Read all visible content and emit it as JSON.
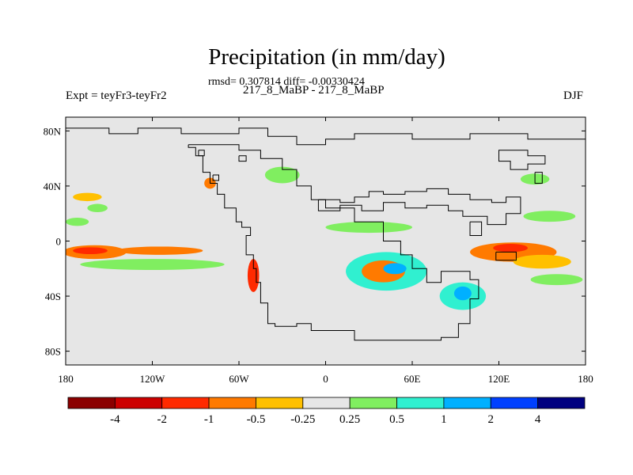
{
  "chart_data": {
    "type": "heatmap",
    "title": "Precipitation (in mm/day)",
    "stats_line": "rmsd= 0.307814 diff= -0.00330424",
    "runs_line": "217_8_MaBP - 217_8_MaBP",
    "left_label": "Expt = teyFr3-teyFr2",
    "right_label": "DJF",
    "xlabel": "",
    "ylabel": "",
    "xlim": [
      -180,
      180
    ],
    "ylim": [
      -90,
      90
    ],
    "x_ticks": [
      {
        "value": -180,
        "label": "180"
      },
      {
        "value": -120,
        "label": "120W"
      },
      {
        "value": -60,
        "label": "60W"
      },
      {
        "value": 0,
        "label": "0"
      },
      {
        "value": 60,
        "label": "60E"
      },
      {
        "value": 120,
        "label": "120E"
      },
      {
        "value": 180,
        "label": "180"
      }
    ],
    "y_ticks": [
      {
        "value": 80,
        "label": "80N"
      },
      {
        "value": 40,
        "label": "40N"
      },
      {
        "value": 0,
        "label": "0"
      },
      {
        "value": -40,
        "label": "40S"
      },
      {
        "value": -80,
        "label": "80S"
      }
    ],
    "colorbar": {
      "levels": [
        "-4",
        "-2",
        "-1",
        "-0.5",
        "-0.25",
        "0.25",
        "0.5",
        "1",
        "2",
        "4"
      ],
      "colors": [
        "#8b0000",
        "#cc0000",
        "#ff2a00",
        "#ff7a00",
        "#ffc000",
        "#e6e6e6",
        "#80ee60",
        "#30f0d0",
        "#00b0ff",
        "#0040ff",
        "#000080"
      ]
    },
    "background_color": "#e6e6e6",
    "features": [
      {
        "name": "equatorial-pacific-west-negative",
        "center": [
          -160,
          -8
        ],
        "extent": [
          22,
          5
        ],
        "bin": 3
      },
      {
        "name": "equatorial-pacific-west-core",
        "center": [
          -163,
          -7
        ],
        "extent": [
          12,
          2.5
        ],
        "bin": 2
      },
      {
        "name": "equatorial-pacific-central-negative",
        "center": [
          -115,
          -7
        ],
        "extent": [
          30,
          3
        ],
        "bin": 3
      },
      {
        "name": "south-pacific-positive-band",
        "center": [
          -120,
          -17
        ],
        "extent": [
          50,
          4
        ],
        "bin": 6
      },
      {
        "name": "north-pacific-orange-patch",
        "center": [
          -165,
          32
        ],
        "extent": [
          10,
          3
        ],
        "bin": 4
      },
      {
        "name": "north-pacific-green-patch",
        "center": [
          -172,
          14
        ],
        "extent": [
          8,
          3
        ],
        "bin": 6
      },
      {
        "name": "north-pacific-green-patch-2",
        "center": [
          -158,
          24
        ],
        "extent": [
          7,
          3
        ],
        "bin": 6
      },
      {
        "name": "andes-negative",
        "center": [
          -50,
          -25
        ],
        "extent": [
          4,
          12
        ],
        "bin": 2
      },
      {
        "name": "central-america-negative",
        "center": [
          -80,
          42
        ],
        "extent": [
          4,
          4
        ],
        "bin": 3
      },
      {
        "name": "atlantic-north-positive",
        "center": [
          -30,
          48
        ],
        "extent": [
          12,
          6
        ],
        "bin": 6
      },
      {
        "name": "north-africa-positive",
        "center": [
          30,
          10
        ],
        "extent": [
          30,
          4
        ],
        "bin": 6
      },
      {
        "name": "south-africa-mixed",
        "center": [
          42,
          -22
        ],
        "extent": [
          28,
          14
        ],
        "bin": 7
      },
      {
        "name": "south-africa-negative",
        "center": [
          40,
          -22
        ],
        "extent": [
          15,
          8
        ],
        "bin": 3
      },
      {
        "name": "south-africa-cyan",
        "center": [
          48,
          -20
        ],
        "extent": [
          8,
          4
        ],
        "bin": 8
      },
      {
        "name": "madagascar-region-mixed",
        "center": [
          95,
          -40
        ],
        "extent": [
          16,
          10
        ],
        "bin": 7
      },
      {
        "name": "indian-ocean-cyan",
        "center": [
          95,
          -38
        ],
        "extent": [
          6,
          5
        ],
        "bin": 8
      },
      {
        "name": "equatorial-indian-negative",
        "center": [
          130,
          -8
        ],
        "extent": [
          30,
          7
        ],
        "bin": 3
      },
      {
        "name": "equatorial-indian-core",
        "center": [
          128,
          -5
        ],
        "extent": [
          12,
          3
        ],
        "bin": 2
      },
      {
        "name": "equatorial-indian-south",
        "center": [
          150,
          -15
        ],
        "extent": [
          20,
          5
        ],
        "bin": 4
      },
      {
        "name": "pacific-east-green",
        "center": [
          155,
          18
        ],
        "extent": [
          18,
          4
        ],
        "bin": 6
      },
      {
        "name": "east-asia-mixed",
        "center": [
          145,
          45
        ],
        "extent": [
          10,
          4
        ],
        "bin": 6
      },
      {
        "name": "southeast-asia-green",
        "center": [
          160,
          -28
        ],
        "extent": [
          18,
          4
        ],
        "bin": 6
      }
    ]
  }
}
